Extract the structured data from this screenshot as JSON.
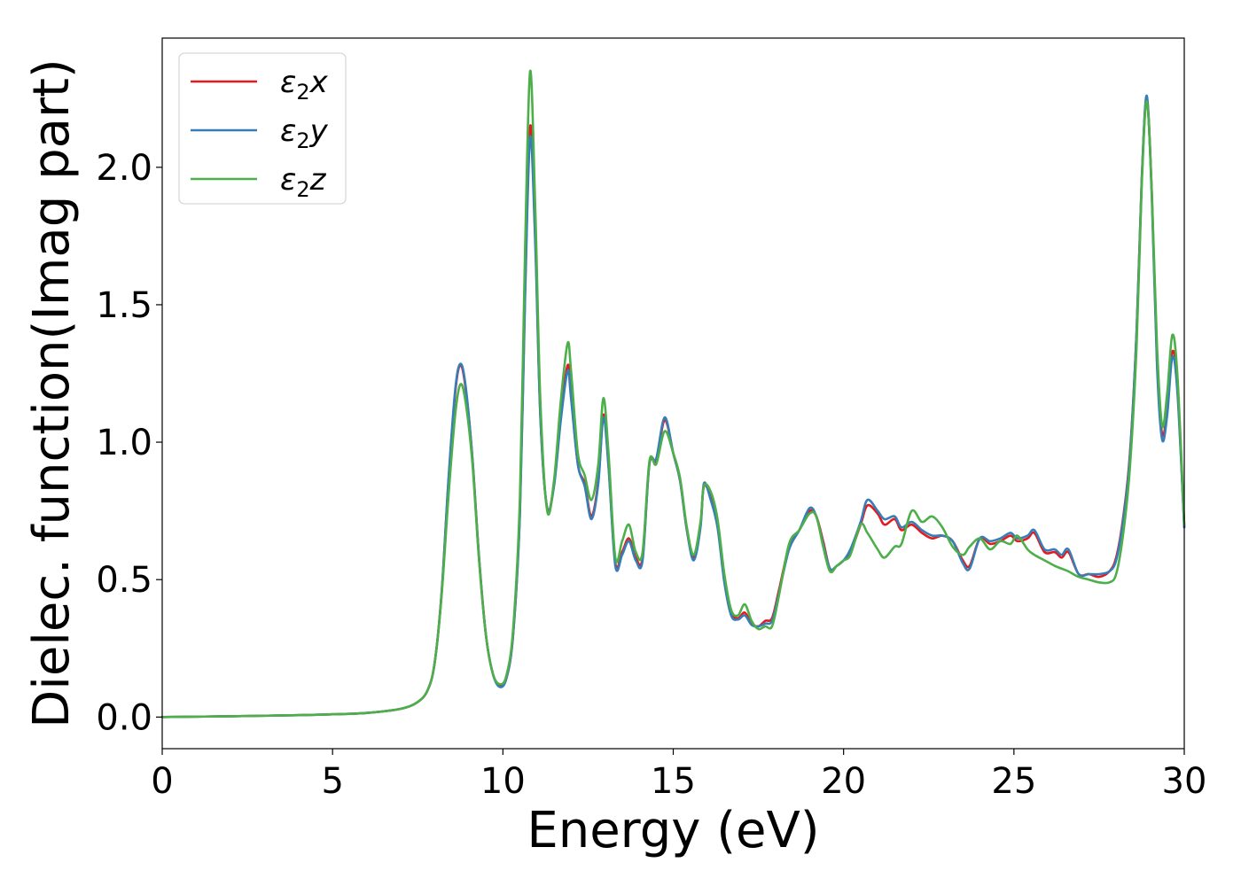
{
  "chart_data": {
    "type": "line",
    "title": "",
    "xlabel": "Energy (eV)",
    "ylabel": "Dielec. function(Imag part)",
    "xlim": [
      0,
      30
    ],
    "ylim": [
      -0.115,
      2.47
    ],
    "xticks": [
      0,
      5,
      10,
      15,
      20,
      25,
      30
    ],
    "yticks": [
      0.0,
      0.5,
      1.0,
      1.5,
      2.0
    ],
    "xtick_labels": [
      "0",
      "5",
      "10",
      "15",
      "20",
      "25",
      "30"
    ],
    "ytick_labels": [
      "0.0",
      "0.5",
      "1.0",
      "1.5",
      "2.0"
    ],
    "grid": false,
    "legend_position": "top-left",
    "series": [
      {
        "name": "ε₂x",
        "legend_main": "ε",
        "legend_sub": "2",
        "legend_var": "x",
        "color": "#e41a1c",
        "x": [
          0,
          2,
          4,
          5,
          6,
          7,
          7.5,
          7.8,
          8.0,
          8.2,
          8.4,
          8.6,
          8.75,
          8.9,
          9.1,
          9.3,
          9.5,
          9.7,
          9.9,
          10.1,
          10.3,
          10.5,
          10.65,
          10.8,
          10.95,
          11.1,
          11.3,
          11.5,
          11.7,
          11.9,
          12.0,
          12.2,
          12.4,
          12.6,
          12.8,
          12.95,
          13.1,
          13.3,
          13.5,
          13.7,
          13.9,
          14.1,
          14.3,
          14.5,
          14.75,
          15.0,
          15.2,
          15.4,
          15.6,
          15.8,
          15.9,
          16.1,
          16.3,
          16.5,
          16.7,
          16.9,
          17.1,
          17.3,
          17.5,
          17.7,
          17.9,
          18.1,
          18.4,
          18.7,
          19.0,
          19.2,
          19.4,
          19.6,
          19.8,
          20.0,
          20.2,
          20.5,
          20.7,
          21.0,
          21.2,
          21.5,
          21.7,
          22.0,
          22.3,
          22.6,
          22.9,
          23.2,
          23.5,
          23.7,
          24.0,
          24.3,
          24.6,
          24.9,
          25.1,
          25.4,
          25.6,
          25.9,
          26.2,
          26.4,
          26.6,
          26.9,
          27.2,
          27.5,
          27.8,
          28.0,
          28.2,
          28.4,
          28.6,
          28.75,
          28.9,
          29.05,
          29.2,
          29.35,
          29.5,
          29.65,
          29.8,
          30.0
        ],
        "y": [
          0.0,
          0.003,
          0.007,
          0.01,
          0.015,
          0.03,
          0.055,
          0.1,
          0.2,
          0.45,
          0.85,
          1.18,
          1.28,
          1.2,
          0.95,
          0.58,
          0.3,
          0.16,
          0.115,
          0.14,
          0.3,
          0.75,
          1.55,
          2.15,
          1.75,
          1.1,
          0.76,
          0.85,
          1.1,
          1.28,
          1.18,
          0.92,
          0.85,
          0.73,
          0.86,
          1.1,
          0.92,
          0.56,
          0.6,
          0.65,
          0.58,
          0.58,
          0.92,
          0.93,
          1.08,
          0.96,
          0.86,
          0.68,
          0.58,
          0.7,
          0.84,
          0.8,
          0.7,
          0.5,
          0.38,
          0.36,
          0.38,
          0.34,
          0.33,
          0.35,
          0.36,
          0.46,
          0.62,
          0.68,
          0.75,
          0.73,
          0.64,
          0.54,
          0.55,
          0.57,
          0.6,
          0.7,
          0.77,
          0.74,
          0.7,
          0.72,
          0.68,
          0.7,
          0.67,
          0.65,
          0.66,
          0.64,
          0.57,
          0.55,
          0.65,
          0.63,
          0.64,
          0.66,
          0.64,
          0.65,
          0.67,
          0.6,
          0.6,
          0.58,
          0.6,
          0.52,
          0.52,
          0.51,
          0.53,
          0.58,
          0.72,
          0.95,
          1.4,
          1.95,
          2.25,
          1.9,
          1.3,
          1.03,
          1.12,
          1.33,
          1.2,
          0.69
        ]
      },
      {
        "name": "ε₂y",
        "legend_main": "ε",
        "legend_sub": "2",
        "legend_var": "y",
        "color": "#377eb8",
        "x": [
          0,
          2,
          4,
          5,
          6,
          7,
          7.5,
          7.8,
          8.0,
          8.2,
          8.4,
          8.6,
          8.75,
          8.9,
          9.1,
          9.3,
          9.5,
          9.7,
          9.9,
          10.1,
          10.3,
          10.5,
          10.65,
          10.8,
          10.95,
          11.1,
          11.3,
          11.5,
          11.7,
          11.9,
          12.0,
          12.2,
          12.4,
          12.6,
          12.8,
          12.95,
          13.1,
          13.3,
          13.5,
          13.7,
          13.9,
          14.1,
          14.3,
          14.5,
          14.75,
          15.0,
          15.2,
          15.4,
          15.6,
          15.8,
          15.9,
          16.1,
          16.3,
          16.5,
          16.7,
          16.9,
          17.1,
          17.3,
          17.5,
          17.7,
          17.9,
          18.1,
          18.4,
          18.7,
          19.0,
          19.2,
          19.4,
          19.6,
          19.8,
          20.0,
          20.2,
          20.5,
          20.7,
          21.0,
          21.2,
          21.5,
          21.7,
          22.0,
          22.3,
          22.6,
          22.9,
          23.2,
          23.5,
          23.7,
          24.0,
          24.3,
          24.6,
          24.9,
          25.1,
          25.4,
          25.6,
          25.9,
          26.2,
          26.4,
          26.6,
          26.9,
          27.2,
          27.5,
          27.8,
          28.0,
          28.2,
          28.4,
          28.6,
          28.75,
          28.9,
          29.05,
          29.2,
          29.35,
          29.5,
          29.65,
          29.8,
          30.0
        ],
        "y": [
          0.0,
          0.003,
          0.007,
          0.01,
          0.015,
          0.03,
          0.055,
          0.1,
          0.2,
          0.45,
          0.86,
          1.19,
          1.285,
          1.21,
          0.95,
          0.58,
          0.3,
          0.16,
          0.11,
          0.14,
          0.3,
          0.74,
          1.52,
          2.11,
          1.72,
          1.09,
          0.76,
          0.84,
          1.08,
          1.26,
          1.16,
          0.92,
          0.84,
          0.72,
          0.85,
          1.09,
          0.91,
          0.55,
          0.59,
          0.64,
          0.57,
          0.57,
          0.92,
          0.94,
          1.09,
          0.96,
          0.86,
          0.68,
          0.57,
          0.69,
          0.85,
          0.79,
          0.69,
          0.49,
          0.37,
          0.355,
          0.37,
          0.335,
          0.33,
          0.34,
          0.35,
          0.45,
          0.61,
          0.68,
          0.76,
          0.73,
          0.63,
          0.54,
          0.55,
          0.57,
          0.61,
          0.71,
          0.79,
          0.75,
          0.72,
          0.73,
          0.69,
          0.71,
          0.68,
          0.66,
          0.66,
          0.64,
          0.56,
          0.54,
          0.65,
          0.64,
          0.65,
          0.67,
          0.65,
          0.66,
          0.68,
          0.61,
          0.61,
          0.59,
          0.61,
          0.52,
          0.52,
          0.52,
          0.53,
          0.57,
          0.71,
          0.94,
          1.4,
          1.95,
          2.26,
          1.88,
          1.28,
          1.01,
          1.1,
          1.31,
          1.18,
          0.69
        ]
      },
      {
        "name": "ε₂z",
        "legend_main": "ε",
        "legend_sub": "2",
        "legend_var": "z",
        "color": "#4daf4a",
        "x": [
          0,
          2,
          4,
          5,
          6,
          7,
          7.5,
          7.8,
          8.0,
          8.2,
          8.4,
          8.6,
          8.75,
          8.9,
          9.1,
          9.3,
          9.5,
          9.7,
          9.9,
          10.1,
          10.3,
          10.5,
          10.65,
          10.8,
          10.95,
          11.1,
          11.3,
          11.5,
          11.7,
          11.9,
          12.0,
          12.2,
          12.4,
          12.6,
          12.8,
          12.95,
          13.1,
          13.3,
          13.5,
          13.7,
          13.9,
          14.1,
          14.3,
          14.5,
          14.75,
          15.0,
          15.2,
          15.4,
          15.6,
          15.8,
          15.9,
          16.1,
          16.3,
          16.5,
          16.7,
          16.9,
          17.1,
          17.3,
          17.5,
          17.7,
          17.9,
          18.1,
          18.4,
          18.7,
          19.0,
          19.2,
          19.4,
          19.6,
          19.8,
          20.0,
          20.2,
          20.5,
          20.7,
          21.0,
          21.2,
          21.5,
          21.7,
          22.0,
          22.3,
          22.6,
          22.9,
          23.2,
          23.5,
          23.7,
          24.0,
          24.3,
          24.6,
          24.9,
          25.1,
          25.4,
          25.6,
          25.9,
          26.2,
          26.4,
          26.6,
          26.9,
          27.2,
          27.5,
          27.8,
          28.0,
          28.2,
          28.4,
          28.6,
          28.75,
          28.9,
          29.05,
          29.2,
          29.35,
          29.5,
          29.65,
          29.8,
          30.0
        ],
        "y": [
          0.0,
          0.003,
          0.007,
          0.01,
          0.015,
          0.03,
          0.055,
          0.1,
          0.2,
          0.44,
          0.8,
          1.1,
          1.21,
          1.15,
          0.93,
          0.57,
          0.3,
          0.16,
          0.12,
          0.15,
          0.32,
          0.8,
          1.7,
          2.35,
          1.85,
          1.15,
          0.75,
          0.86,
          1.15,
          1.36,
          1.26,
          0.96,
          0.88,
          0.79,
          0.92,
          1.16,
          0.96,
          0.58,
          0.64,
          0.7,
          0.6,
          0.6,
          0.93,
          0.92,
          1.04,
          0.96,
          0.87,
          0.69,
          0.59,
          0.71,
          0.84,
          0.82,
          0.72,
          0.52,
          0.39,
          0.37,
          0.41,
          0.35,
          0.32,
          0.33,
          0.33,
          0.44,
          0.63,
          0.68,
          0.74,
          0.73,
          0.62,
          0.53,
          0.55,
          0.57,
          0.59,
          0.7,
          0.67,
          0.61,
          0.58,
          0.62,
          0.63,
          0.75,
          0.71,
          0.73,
          0.69,
          0.62,
          0.59,
          0.62,
          0.65,
          0.61,
          0.64,
          0.63,
          0.66,
          0.61,
          0.59,
          0.57,
          0.55,
          0.54,
          0.53,
          0.51,
          0.5,
          0.49,
          0.49,
          0.52,
          0.66,
          0.9,
          1.35,
          1.93,
          2.24,
          1.9,
          1.35,
          1.06,
          1.18,
          1.39,
          1.24,
          0.7
        ]
      }
    ]
  }
}
